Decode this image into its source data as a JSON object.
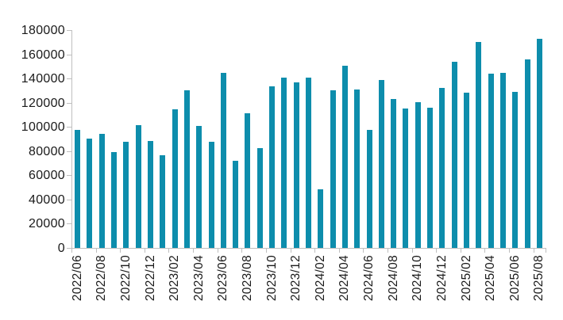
{
  "chart_data": {
    "type": "bar",
    "title": "",
    "xlabel": "",
    "ylabel": "",
    "categories": [
      "2022/06",
      "2022/07",
      "2022/08",
      "2022/09",
      "2022/10",
      "2022/11",
      "2022/12",
      "2023/01",
      "2023/02",
      "2023/03",
      "2023/04",
      "2023/05",
      "2023/06",
      "2023/07",
      "2023/08",
      "2023/09",
      "2023/10",
      "2023/11",
      "2023/12",
      "2024/01",
      "2024/02",
      "2024/03",
      "2024/04",
      "2024/05",
      "2024/06",
      "2024/07",
      "2024/08",
      "2024/09",
      "2024/10",
      "2024/11",
      "2024/12",
      "2025/01",
      "2025/02",
      "2025/03",
      "2025/04",
      "2025/05",
      "2025/06",
      "2025/07",
      "2025/08"
    ],
    "values": [
      97500,
      90500,
      94500,
      79000,
      87500,
      101500,
      88500,
      76500,
      114500,
      130000,
      101000,
      88000,
      144500,
      72000,
      111500,
      82500,
      133500,
      141000,
      136500,
      140500,
      48500,
      130000,
      150500,
      131000,
      97500,
      139000,
      123000,
      115000,
      120500,
      116000,
      132500,
      154000,
      128500,
      170000,
      144000,
      144500,
      129000,
      156000,
      172500
    ],
    "ylim": [
      0,
      180000
    ],
    "ytick_step": 20000,
    "ytick_labels": [
      "0",
      "20000",
      "40000",
      "60000",
      "80000",
      "100000",
      "120000",
      "140000",
      "160000",
      "180000"
    ],
    "xtick_label_interval": 2,
    "bar_color": "#0d8dac",
    "axis_color": "#bfbfbf",
    "text_color": "#1a1a1a",
    "background_color": "#ffffff",
    "grid": "off",
    "legend": "none"
  }
}
